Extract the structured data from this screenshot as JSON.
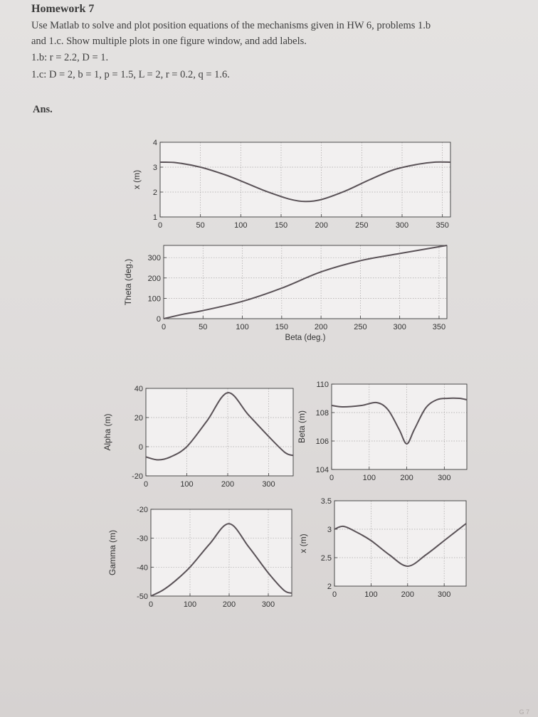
{
  "page": {
    "title": "Homework 7",
    "lines": [
      "Use Matlab to solve and plot position equations of the mechanisms given in HW 6, problems 1.b",
      "and 1.c. Show multiple plots in one figure window, and add labels.",
      "1.b: r = 2.2, D = 1.",
      "1.c: D = 2, b = 1, p = 1.5, L = 2, r = 0.2, q = 1.6."
    ],
    "answer_label": "Ans.",
    "corner_mark": "G 7"
  },
  "colors": {
    "curve": "#5a5257",
    "grid": "#a9a6a6",
    "axis": "#3a3a3a",
    "plot_bg": "#f2f0f0"
  },
  "chart_data": [
    {
      "type": "line",
      "title": "",
      "xlabel": "",
      "ylabel": "x (m)",
      "xlim": [
        0,
        360
      ],
      "ylim": [
        1,
        4
      ],
      "xticks": [
        0,
        50,
        100,
        150,
        200,
        250,
        300,
        350
      ],
      "yticks": [
        1,
        2,
        3,
        4
      ],
      "grid": true,
      "series": [
        {
          "x": [
            0,
            20,
            50,
            80,
            100,
            130,
            160,
            180,
            200,
            230,
            260,
            290,
            320,
            340,
            360
          ],
          "y": [
            3.2,
            3.18,
            3.0,
            2.7,
            2.45,
            2.05,
            1.72,
            1.62,
            1.7,
            2.05,
            2.5,
            2.9,
            3.12,
            3.2,
            3.2
          ]
        }
      ]
    },
    {
      "type": "line",
      "title": "",
      "xlabel": "Beta (deg.)",
      "ylabel": "Theta (deg.)",
      "xlim": [
        0,
        360
      ],
      "ylim": [
        0,
        360
      ],
      "xticks": [
        0,
        50,
        100,
        150,
        200,
        250,
        300,
        350
      ],
      "yticks": [
        0,
        100,
        200,
        300
      ],
      "grid": true,
      "series": [
        {
          "x": [
            0,
            25,
            50,
            100,
            150,
            200,
            250,
            300,
            360
          ],
          "y": [
            0,
            22,
            40,
            85,
            150,
            230,
            285,
            320,
            360
          ]
        }
      ]
    },
    {
      "type": "line",
      "title": "",
      "xlabel": "",
      "ylabel": "Alpha (m)",
      "xlim": [
        0,
        360
      ],
      "ylim": [
        -20,
        40
      ],
      "xticks": [
        0,
        100,
        200,
        300
      ],
      "yticks": [
        -20,
        0,
        20,
        40
      ],
      "grid": true,
      "series": [
        {
          "x": [
            0,
            30,
            60,
            100,
            150,
            200,
            250,
            300,
            340,
            360
          ],
          "y": [
            -7,
            -9,
            -7,
            0,
            18,
            37,
            22,
            7,
            -4,
            -6
          ]
        }
      ]
    },
    {
      "type": "line",
      "title": "",
      "xlabel": "",
      "ylabel": "Beta (m)",
      "xlim": [
        0,
        360
      ],
      "ylim": [
        104,
        110
      ],
      "xticks": [
        0,
        100,
        200,
        300
      ],
      "yticks": [
        104,
        106,
        108,
        110
      ],
      "grid": true,
      "series": [
        {
          "x": [
            0,
            30,
            80,
            120,
            150,
            180,
            200,
            220,
            250,
            280,
            310,
            340,
            360
          ],
          "y": [
            108.5,
            108.4,
            108.5,
            108.7,
            108.2,
            106.8,
            105.8,
            106.8,
            108.3,
            108.9,
            109.0,
            109.0,
            108.9
          ]
        }
      ]
    },
    {
      "type": "line",
      "title": "",
      "xlabel": "",
      "ylabel": "Gamma (m)",
      "xlim": [
        0,
        360
      ],
      "ylim": [
        -50,
        -20
      ],
      "xticks": [
        0,
        100,
        200,
        300
      ],
      "yticks": [
        -50,
        -40,
        -30,
        -20
      ],
      "grid": true,
      "series": [
        {
          "x": [
            0,
            30,
            60,
            100,
            150,
            200,
            250,
            300,
            340,
            360
          ],
          "y": [
            -50,
            -48,
            -45,
            -40,
            -32,
            -25,
            -33,
            -42,
            -48,
            -49
          ]
        }
      ]
    },
    {
      "type": "line",
      "title": "",
      "xlabel": "",
      "ylabel": "x (m)",
      "xlim": [
        0,
        360
      ],
      "ylim": [
        2,
        3.5
      ],
      "xticks": [
        0,
        100,
        200,
        300
      ],
      "yticks": [
        2,
        2.5,
        3,
        3.5
      ],
      "grid": true,
      "series": [
        {
          "x": [
            0,
            25,
            60,
            100,
            150,
            200,
            250,
            300,
            340,
            360
          ],
          "y": [
            3.0,
            3.05,
            2.95,
            2.8,
            2.55,
            2.35,
            2.55,
            2.8,
            3.0,
            3.1
          ]
        }
      ]
    }
  ]
}
